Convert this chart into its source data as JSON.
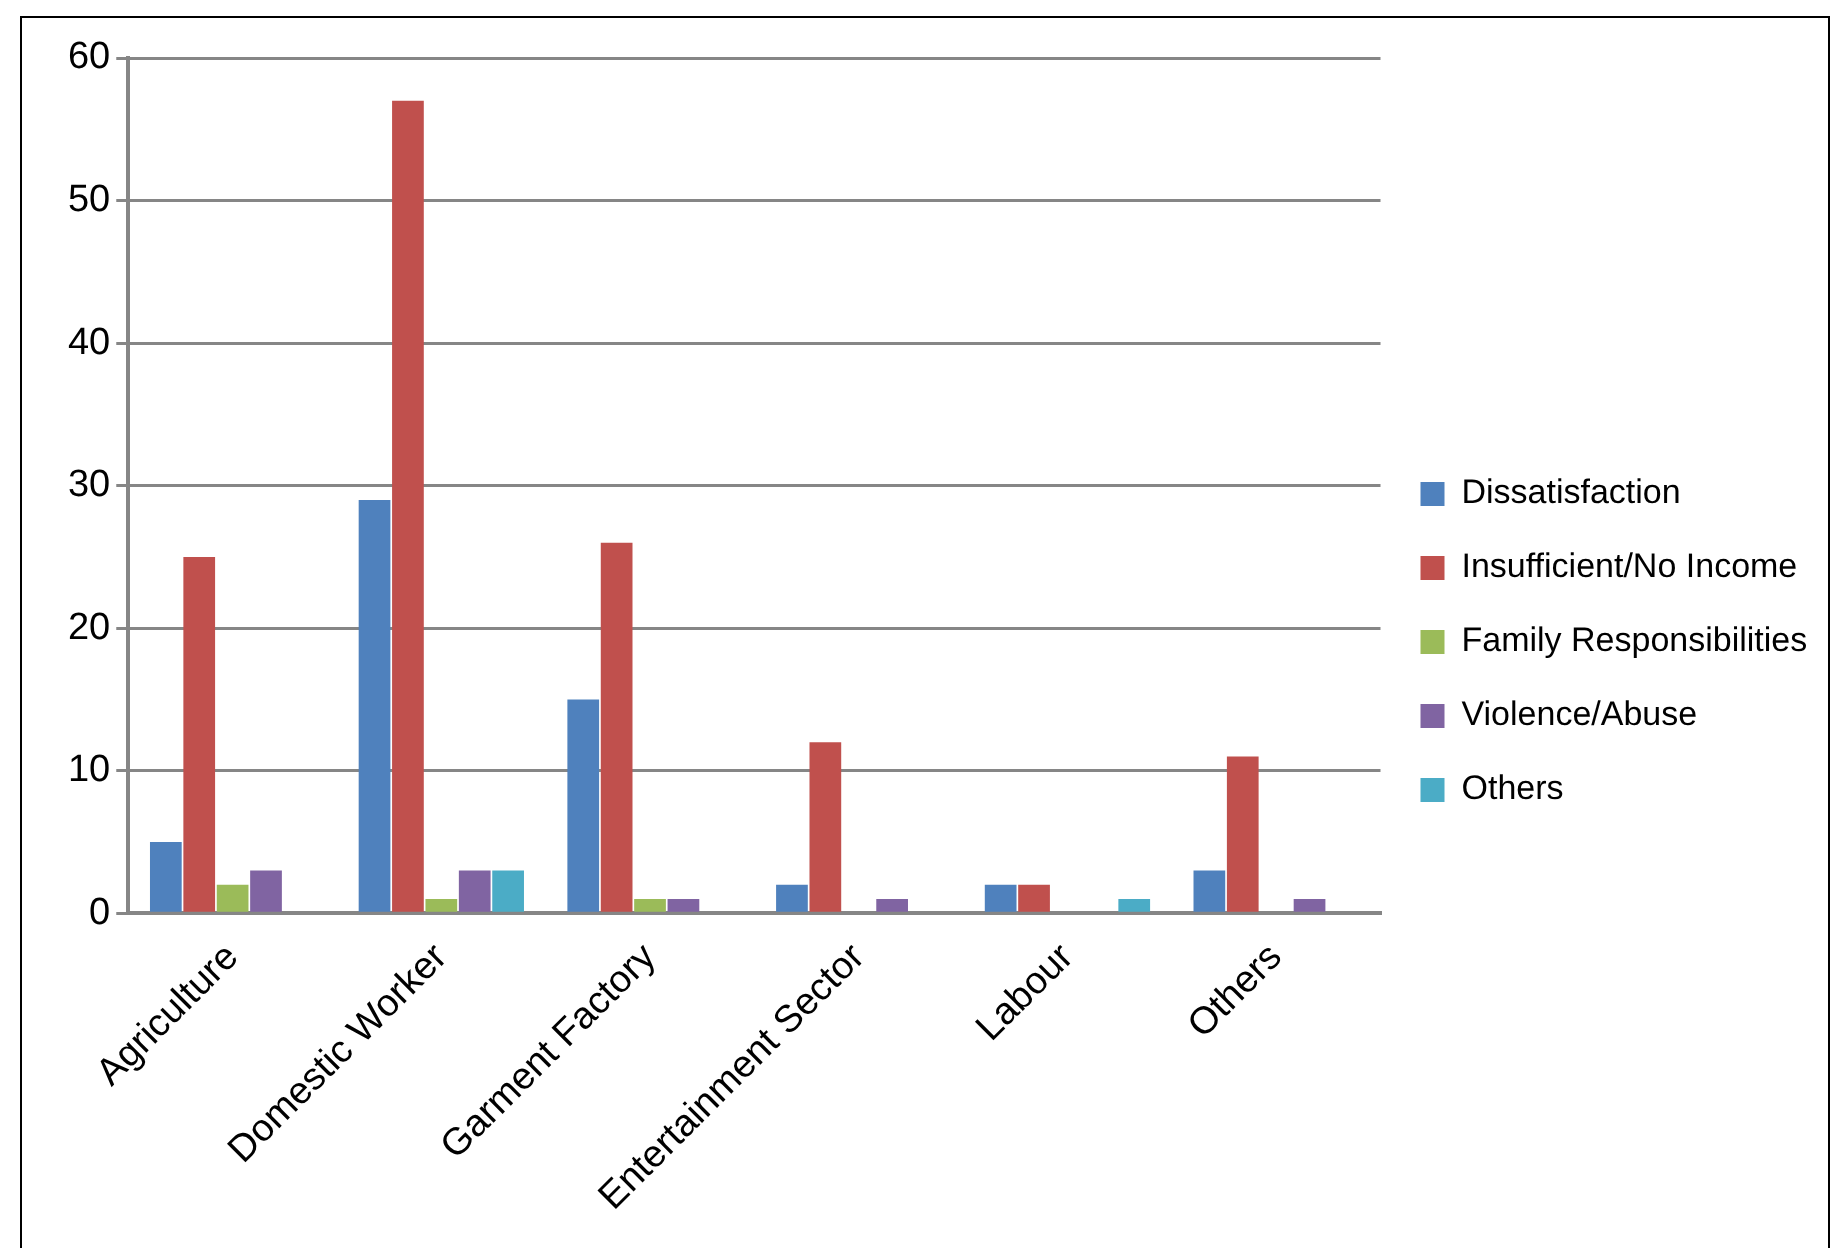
{
  "chart_data": {
    "type": "bar",
    "categories": [
      "Agriculture",
      "Domestic Worker",
      "Garment Factory",
      "Entertainment Sector",
      "Labour",
      "Others"
    ],
    "series": [
      {
        "name": "Dissatisfaction",
        "color": "#4f81bd",
        "values": [
          5,
          29,
          15,
          2,
          2,
          3
        ]
      },
      {
        "name": "Insufficient/No Income",
        "color": "#c0504d",
        "values": [
          25,
          57,
          26,
          12,
          2,
          11
        ]
      },
      {
        "name": "Family Responsibilities",
        "color": "#9bbb59",
        "values": [
          2,
          1,
          1,
          0,
          0,
          0
        ]
      },
      {
        "name": "Violence/Abuse",
        "color": "#8064a2",
        "values": [
          3,
          3,
          1,
          1,
          0,
          1
        ]
      },
      {
        "name": "Others",
        "color": "#4bacc6",
        "values": [
          0,
          3,
          0,
          0,
          1,
          0
        ]
      }
    ],
    "ylim": [
      0,
      60
    ],
    "yticks": [
      0,
      10,
      20,
      30,
      40,
      50,
      60
    ],
    "grid": "y",
    "legend": "right"
  }
}
